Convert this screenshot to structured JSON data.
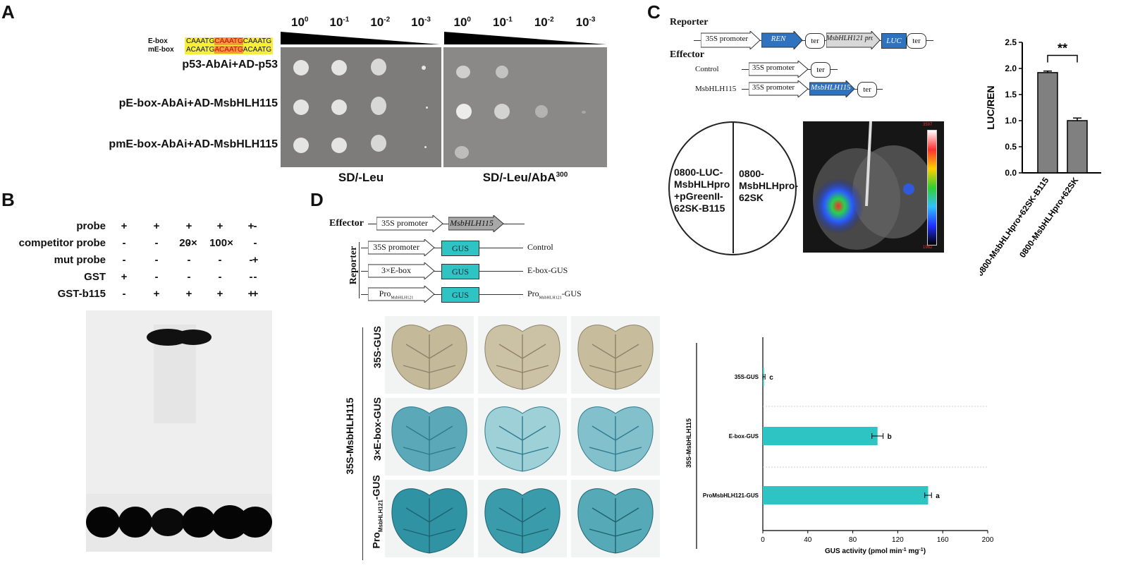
{
  "panel_labels": {
    "a": "A",
    "b": "B",
    "c": "C",
    "d": "D"
  },
  "panel_a": {
    "eboxes": [
      {
        "label": "E-box",
        "seq_pre": "CAAATG",
        "seq_mid": "CAAATG",
        "seq_post": "CAAATG"
      },
      {
        "label": "mE-box",
        "seq_pre": "ACAATG",
        "seq_mid": "ACAATG",
        "seq_post": "ACAATG"
      }
    ],
    "dilutions_left": [
      {
        "base": "10",
        "exp": "0"
      },
      {
        "base": "10",
        "exp": "-1"
      },
      {
        "base": "10",
        "exp": "-2"
      },
      {
        "base": "10",
        "exp": "-3"
      }
    ],
    "dilutions_right": [
      {
        "base": "10",
        "exp": "0"
      },
      {
        "base": "10",
        "exp": "-1"
      },
      {
        "base": "10",
        "exp": "-2"
      },
      {
        "base": "10",
        "exp": "-3"
      }
    ],
    "rows": [
      "p53-AbAi+AD-p53",
      "pE-box-AbAi+AD-MsbHLH115",
      "pmE-box-AbAi+AD-MsbHLH115"
    ],
    "medium_left": "SD/-Leu",
    "medium_right": "SD/-Leu/AbA",
    "medium_right_sup": "300"
  },
  "panel_b": {
    "rows": [
      {
        "label": "probe",
        "lanes": [
          "+",
          "+",
          "+",
          "+",
          "+",
          "-"
        ]
      },
      {
        "label": "competitor probe",
        "lanes": [
          "-",
          "-",
          "-",
          "20×",
          "100×",
          "-"
        ]
      },
      {
        "label": "mut probe",
        "lanes": [
          "-",
          "-",
          "-",
          "-",
          "-",
          "+"
        ]
      },
      {
        "label": "GST",
        "lanes": [
          "+",
          "-",
          "-",
          "-",
          "-",
          "-"
        ]
      },
      {
        "label": "GST-b115",
        "lanes": [
          "-",
          "+",
          "+",
          "+",
          "+",
          "+"
        ]
      }
    ]
  },
  "panel_c": {
    "reporter_label": "Reporter",
    "effector_label": "Effector",
    "reporter_parts": [
      "35S promoter",
      "REN",
      "ter",
      "MsbHLH121 promoter",
      "LUC",
      "ter"
    ],
    "effector_rows": [
      {
        "name": "Control",
        "parts": [
          "35S promoter",
          "ter"
        ]
      },
      {
        "name": "MsbHLH115",
        "parts": [
          "35S promoter",
          "MsbHLH115",
          "ter"
        ]
      }
    ],
    "circle_left": "0800-LUC-MsbHLHpro +pGreenII-62SK-B115",
    "circle_right": "0800-MsbHLHpro-62SK",
    "colorbar_max": "3597",
    "colorbar_min": "1962",
    "significance": "**"
  },
  "chart_data": [
    {
      "type": "bar",
      "ylabel": "LUC/REN",
      "ylim": [
        0,
        2.5
      ],
      "yticks": [
        "0.0",
        "0.5",
        "1.0",
        "1.5",
        "2.0",
        "2.5"
      ],
      "categories": [
        "0800-MsbHLHpro+62SK-B115",
        "0800-MsbHLHpro+62SK"
      ],
      "values": [
        1.92,
        1.0
      ],
      "errors": [
        0.03,
        0.05
      ],
      "annotation": "**",
      "color": "#808080"
    },
    {
      "type": "bar",
      "orientation": "horizontal",
      "xlabel": "GUS activity (pmol min",
      "xlabel_sup1": "-1",
      "xlabel_mid": " mg",
      "xlabel_sup2": "-1",
      "xlabel_end": ")",
      "ylabel_group": "35S-MsbHLH115",
      "xlim": [
        0,
        200
      ],
      "xticks": [
        "0",
        "40",
        "80",
        "120",
        "160",
        "200"
      ],
      "categories": [
        "35S-GUS",
        "E-box-GUS",
        "ProMsbHLH121-GUS"
      ],
      "values": [
        1,
        102,
        147
      ],
      "errors": [
        1,
        5,
        3
      ],
      "letters": [
        "c",
        "b",
        "a"
      ],
      "color": "#2ec4c4"
    }
  ],
  "panel_d": {
    "effector_label": "Effector",
    "reporter_label": "Reporter",
    "effector_parts": [
      "35S promoter",
      "MsbHLH115"
    ],
    "reporter_rows": [
      {
        "promoter": "35S promoter",
        "gene": "GUS",
        "name": "Control"
      },
      {
        "promoter": "3×E-box",
        "gene": "GUS",
        "name": "E-box-GUS"
      },
      {
        "promoter": "Pro",
        "promoter_sub": "MsbHLH121",
        "gene": "GUS",
        "name": "Pro",
        "name_sub": "MsbHLH121",
        "name_end": "-GUS"
      }
    ],
    "group_label": "35S-MsbHLH115",
    "leaf_rows": [
      {
        "label": "35S-GUS"
      },
      {
        "label": "3×E-box-GUS"
      },
      {
        "label": "Pro",
        "label_sub": "MsbHLH121",
        "label_end": "-GUS"
      }
    ]
  },
  "colors": {
    "plate": "#7d7c7a",
    "gus": "#2ec4c4",
    "luc_box": "#2e72c0",
    "ebox_hl": "#f6ef3a",
    "ebox_core": "#f39a3a"
  }
}
